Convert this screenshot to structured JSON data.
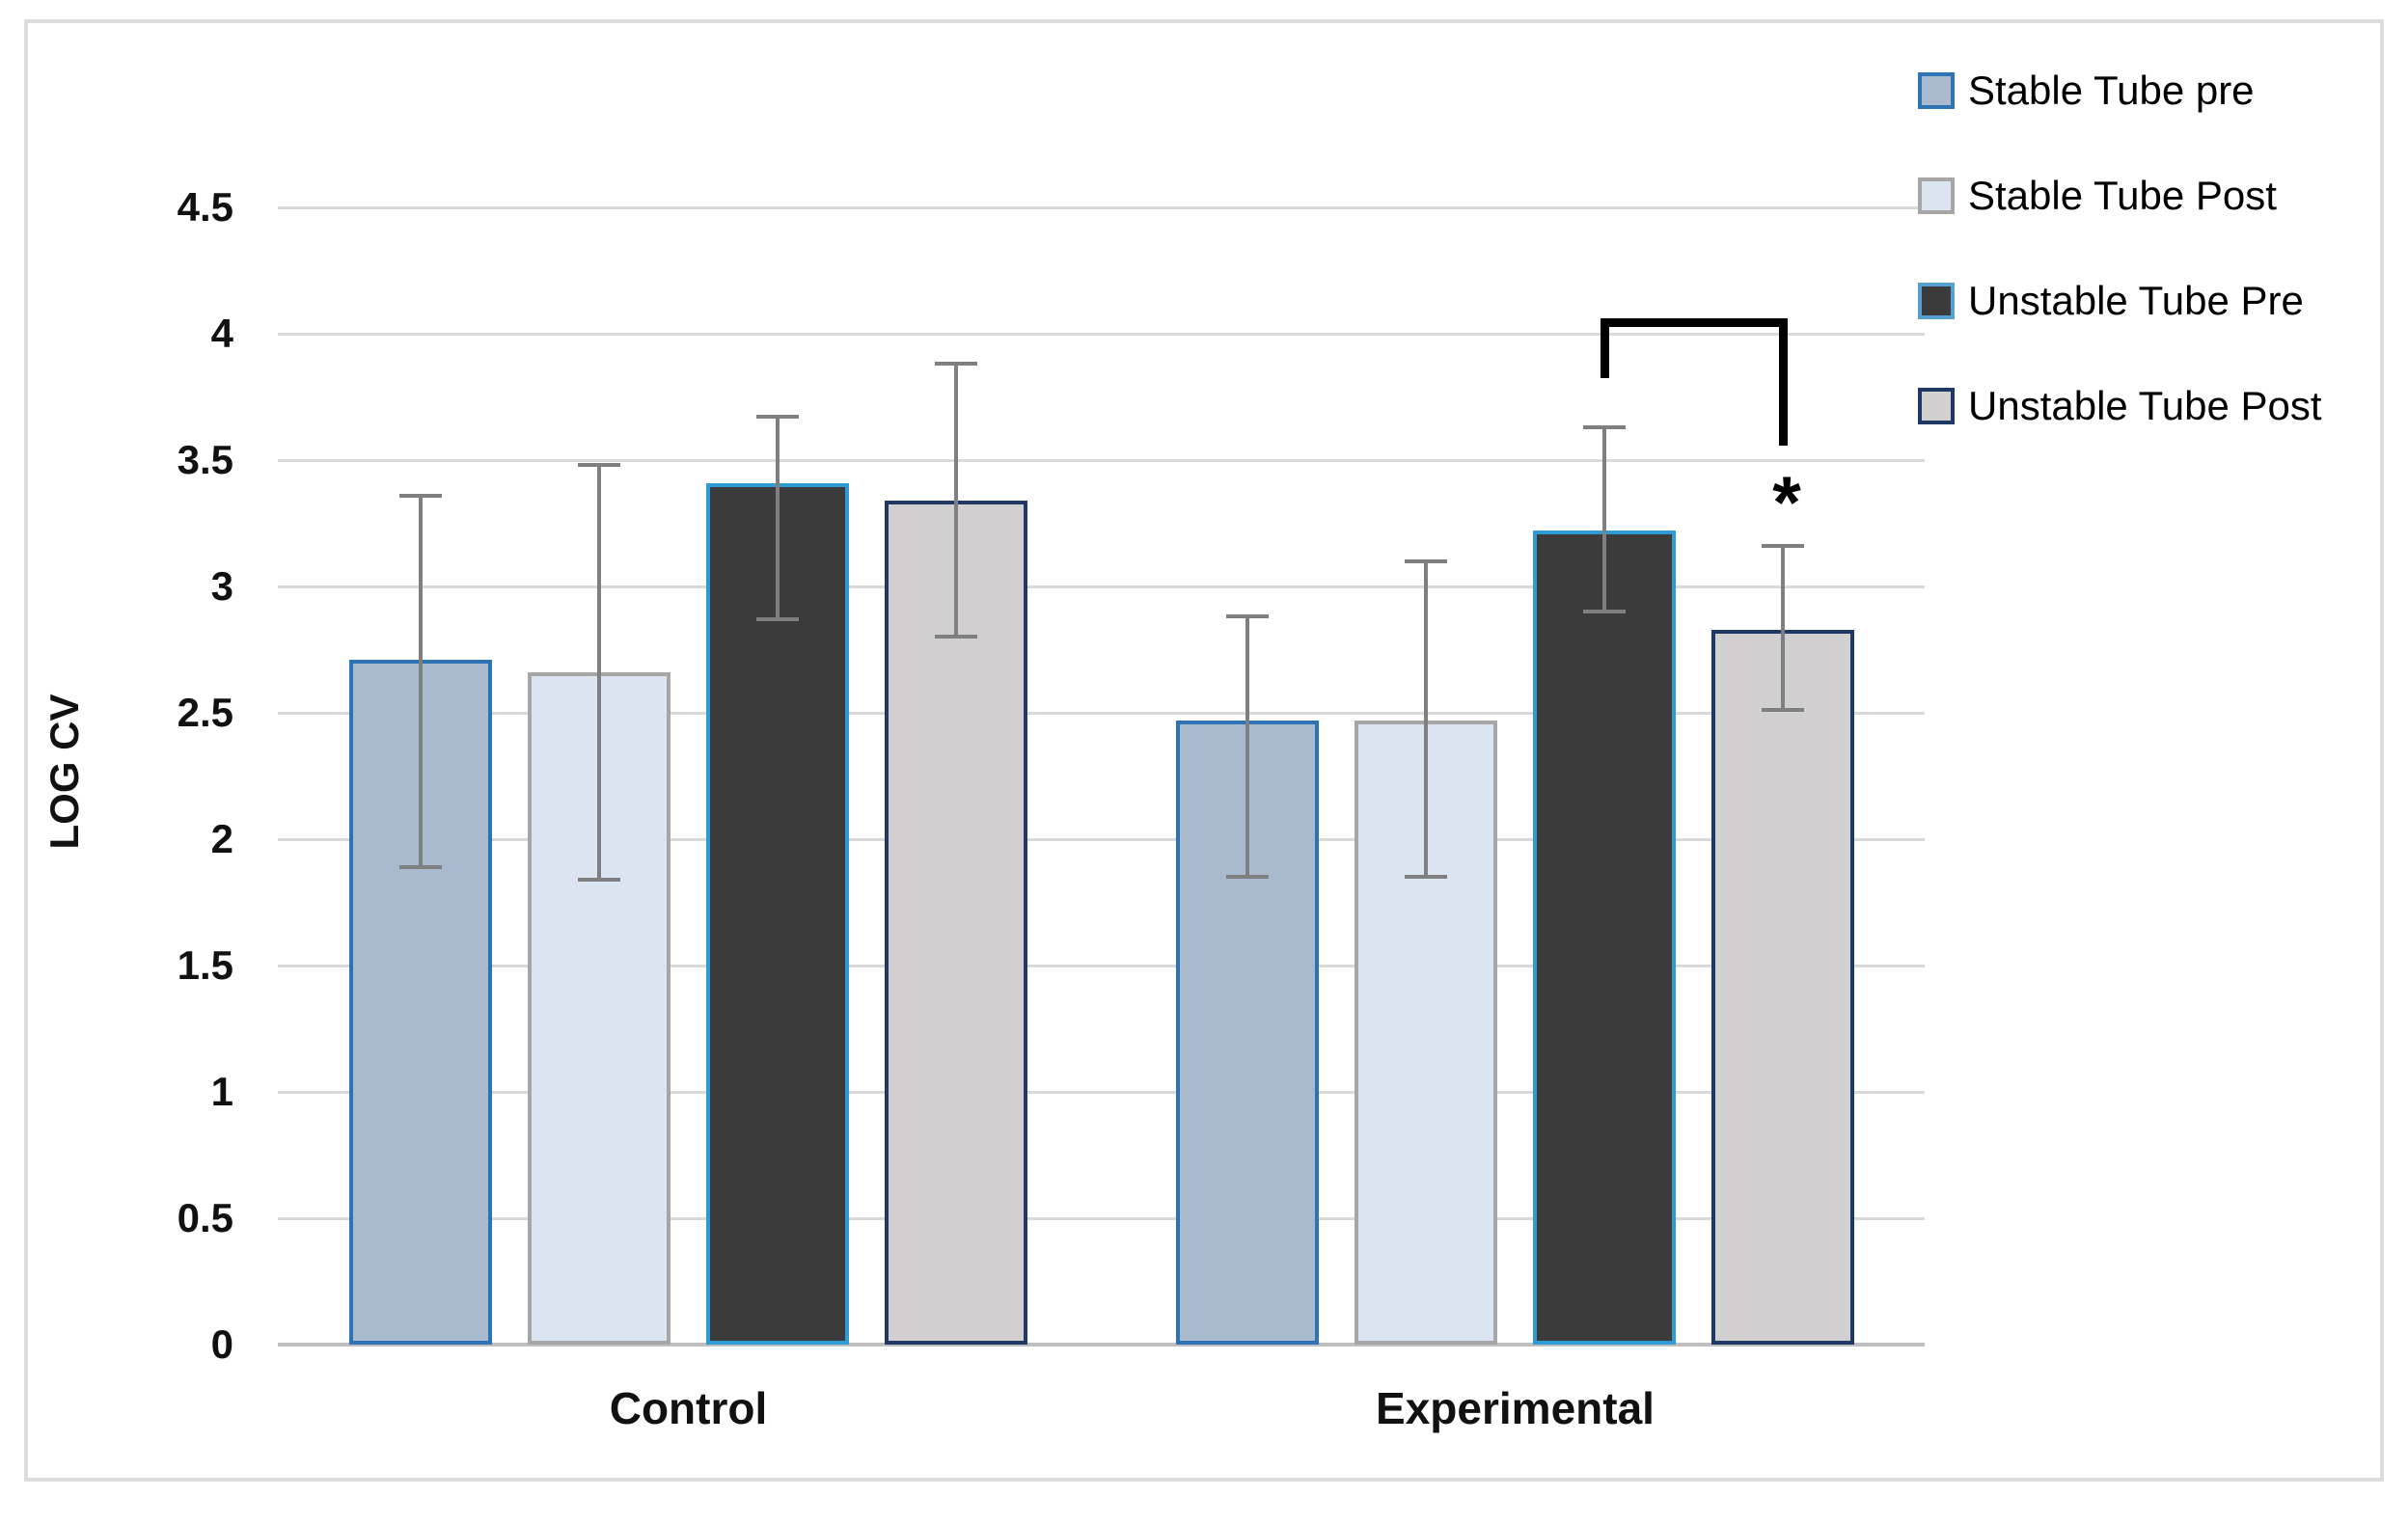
{
  "figure": {
    "background": "#ffffff",
    "border_color": "#dcdcdc"
  },
  "y_axis": {
    "title": "LOG CV",
    "ticks": [
      "0",
      "0.5",
      "1",
      "1.5",
      "2",
      "2.5",
      "3",
      "3.5",
      "4",
      "4.5"
    ],
    "min": 0,
    "max": 4.5,
    "gridline_color": "#d9d9d9",
    "axis_line_color": "#bfbfbf",
    "tick_text_color": "#111111"
  },
  "x_axis": {
    "groups": [
      "Control",
      "Experimental"
    ]
  },
  "legend": {
    "position": "upper-right",
    "items": [
      {
        "label": "Stable Tube pre",
        "fill": "#a9b9ce",
        "border": "#2e74b5"
      },
      {
        "label": "Stable Tube Post",
        "fill": "#dbe5f1",
        "border": "#a6a6a6"
      },
      {
        "label": "Unstable Tube Pre",
        "fill": "#3b3b3b",
        "border": "#54a0d0"
      },
      {
        "label": "Unstable Tube Post",
        "fill": "#d1cfd0",
        "border": "#1f3864"
      }
    ]
  },
  "error_bar_color": "#7f7f7f",
  "significance": {
    "symbol": "*",
    "group": "Experimental",
    "between": [
      "Unstable Tube Pre",
      "Unstable Tube Post"
    ]
  },
  "chart_data": {
    "type": "bar",
    "title": "",
    "xlabel": "",
    "ylabel": "LOG CV",
    "ylim": [
      0,
      4.5
    ],
    "grid": true,
    "legend_position": "upper-right",
    "categories": [
      "Control",
      "Experimental"
    ],
    "series": [
      {
        "name": "Stable Tube pre",
        "values": [
          2.71,
          2.47
        ],
        "error_high": [
          3.36,
          2.88
        ],
        "error_low": [
          1.89,
          1.85
        ],
        "fill": "#a9b9ce",
        "border": "#2e74b5"
      },
      {
        "name": "Stable Tube Post",
        "values": [
          2.66,
          2.47
        ],
        "error_high": [
          3.48,
          3.1
        ],
        "error_low": [
          1.84,
          1.85
        ],
        "fill": "#dbe5f1",
        "border": "#a6a6a6"
      },
      {
        "name": "Unstable Tube Pre",
        "values": [
          3.41,
          3.22
        ],
        "error_high": [
          3.67,
          3.63
        ],
        "error_low": [
          2.87,
          2.9
        ],
        "fill": "#3b3b3b",
        "border": "#2e9bd5"
      },
      {
        "name": "Unstable Tube Post",
        "values": [
          3.34,
          2.83
        ],
        "error_high": [
          3.88,
          3.16
        ],
        "error_low": [
          2.8,
          2.51
        ],
        "fill": "#d1cfd0",
        "border": "#1f3864"
      }
    ],
    "annotations": [
      {
        "type": "significance-bracket",
        "label": "*",
        "group": "Experimental",
        "series": [
          "Unstable Tube Pre",
          "Unstable Tube Post"
        ]
      }
    ]
  }
}
